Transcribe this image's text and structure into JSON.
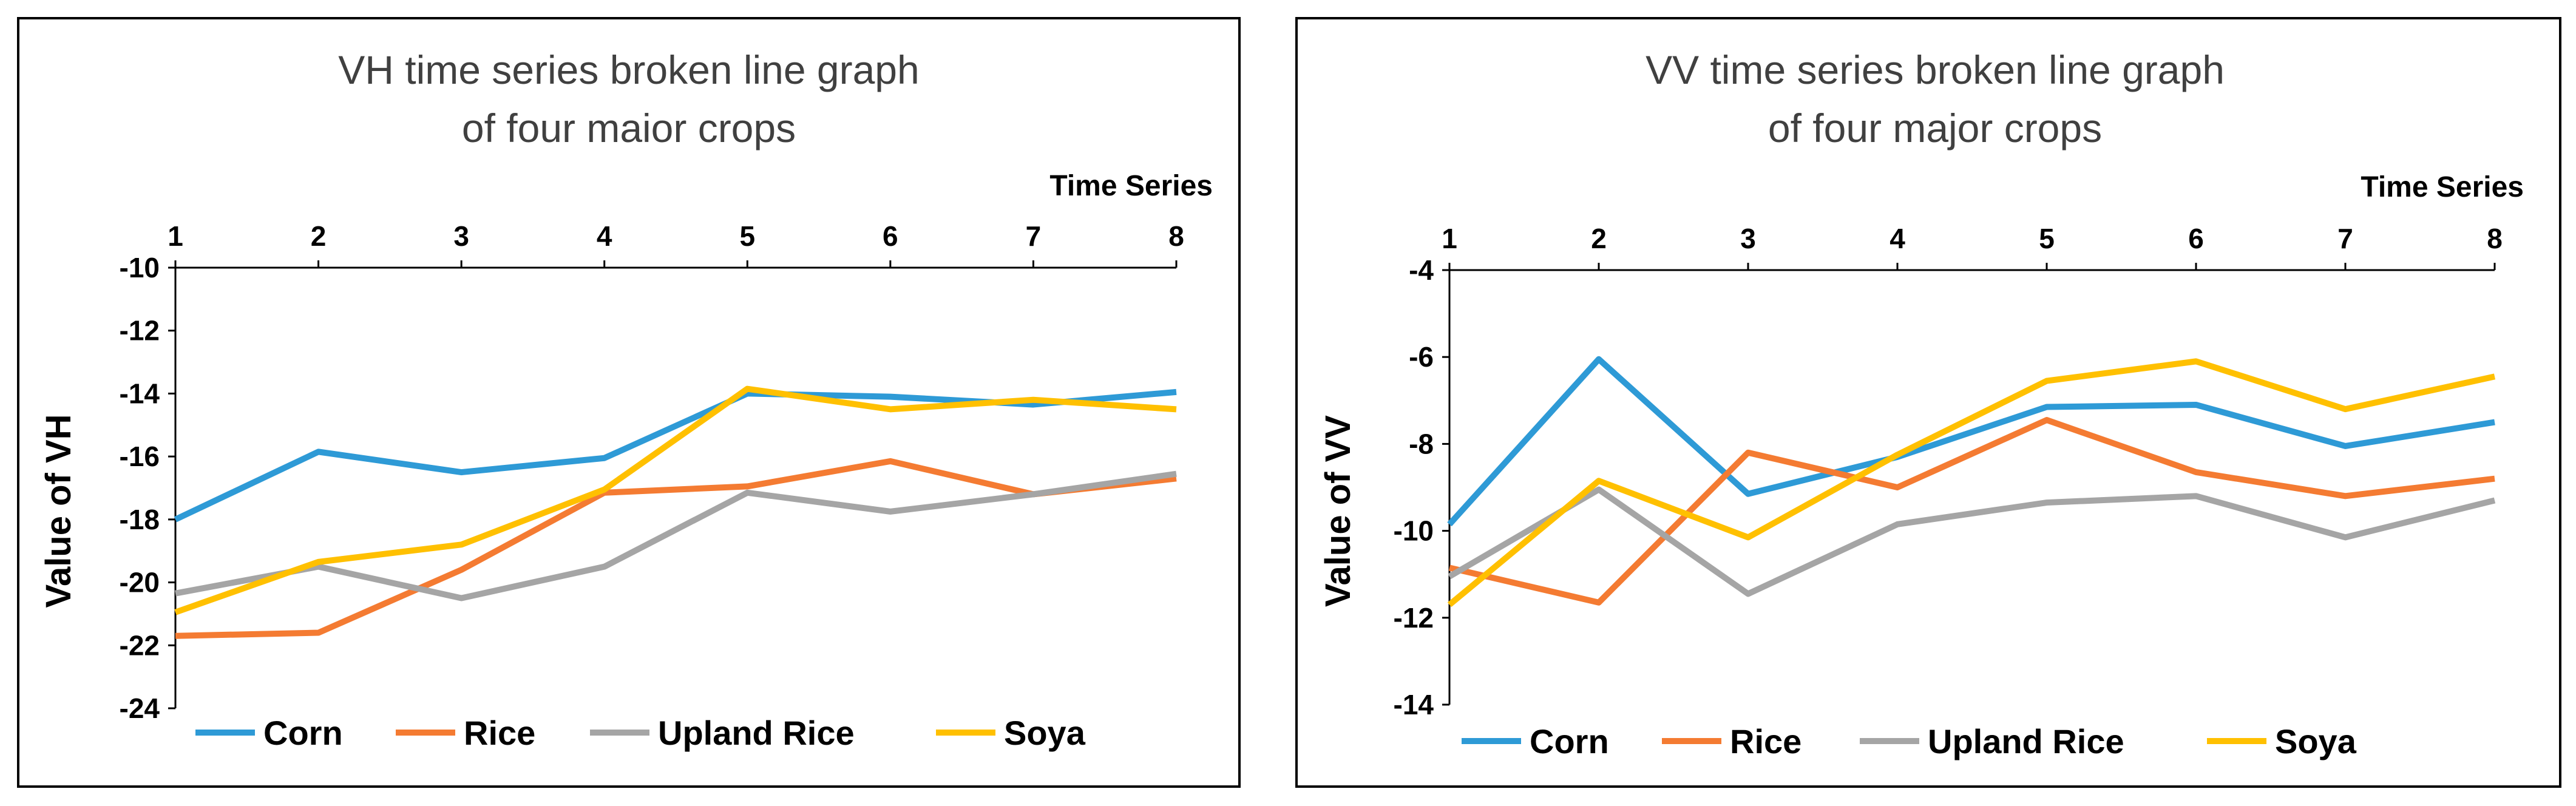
{
  "chart_data": [
    {
      "type": "line",
      "title_lines": [
        "VH time series broken line graph",
        "of four maior crops"
      ],
      "xlabel": "Time Series",
      "ylabel": "Value of VH",
      "x": [
        1,
        2,
        3,
        4,
        5,
        6,
        7,
        8
      ],
      "x_tick_labels": [
        "1",
        "2",
        "3",
        "4",
        "5",
        "6",
        "7",
        "8"
      ],
      "ylim": [
        -24,
        -10
      ],
      "y_ticks": [
        -10,
        -12,
        -14,
        -16,
        -18,
        -20,
        -22,
        -24
      ],
      "y_tick_labels": [
        "-10",
        "-12",
        "-14",
        "-16",
        "-18",
        "-20",
        "-22",
        "-24"
      ],
      "x_axis_position": "top",
      "grid": false,
      "legend_position": "bottom",
      "series": [
        {
          "name": "Corn",
          "color": "#2E9AD6",
          "values": [
            -18.0,
            -15.85,
            -16.5,
            -16.05,
            -14.0,
            -14.1,
            -14.35,
            -13.95
          ]
        },
        {
          "name": "Rice",
          "color": "#F47B32",
          "values": [
            -21.7,
            -21.6,
            -19.6,
            -17.15,
            -16.95,
            -16.15,
            -17.2,
            -16.7
          ]
        },
        {
          "name": "Upland Rice",
          "color": "#A5A5A5",
          "values": [
            -20.35,
            -19.5,
            -20.5,
            -19.5,
            -17.15,
            -17.75,
            -17.2,
            -16.55
          ]
        },
        {
          "name": "Soya",
          "color": "#FFC000",
          "values": [
            -20.95,
            -19.35,
            -18.8,
            -17.05,
            -13.85,
            -14.5,
            -14.2,
            -14.5
          ]
        }
      ]
    },
    {
      "type": "line",
      "title_lines": [
        "VV time series broken line graph",
        "of four major crops"
      ],
      "xlabel": "Time Series",
      "ylabel": "Value of VV",
      "x": [
        1,
        2,
        3,
        4,
        5,
        6,
        7,
        8
      ],
      "x_tick_labels": [
        "1",
        "2",
        "3",
        "4",
        "5",
        "6",
        "7",
        "8"
      ],
      "ylim": [
        -14,
        -4
      ],
      "y_ticks": [
        -4,
        -6,
        -8,
        -10,
        -12,
        -14
      ],
      "y_tick_labels": [
        "-4",
        "-6",
        "-8",
        "-10",
        "-12",
        "-14"
      ],
      "x_axis_position": "top",
      "grid": false,
      "legend_position": "bottom",
      "series": [
        {
          "name": "Corn",
          "color": "#2E9AD6",
          "values": [
            -9.85,
            -6.05,
            -9.15,
            -8.3,
            -7.15,
            -7.1,
            -8.05,
            -7.5
          ]
        },
        {
          "name": "Rice",
          "color": "#F47B32",
          "values": [
            -10.85,
            -11.65,
            -8.2,
            -9.0,
            -7.45,
            -8.65,
            -9.2,
            -8.8
          ]
        },
        {
          "name": "Upland Rice",
          "color": "#A5A5A5",
          "values": [
            -11.05,
            -9.05,
            -11.45,
            -9.85,
            -9.35,
            -9.2,
            -10.15,
            -9.3
          ]
        },
        {
          "name": "Soya",
          "color": "#FFC000",
          "values": [
            -11.7,
            -8.85,
            -10.15,
            -8.25,
            -6.55,
            -6.1,
            -7.2,
            -6.45
          ]
        }
      ]
    }
  ]
}
